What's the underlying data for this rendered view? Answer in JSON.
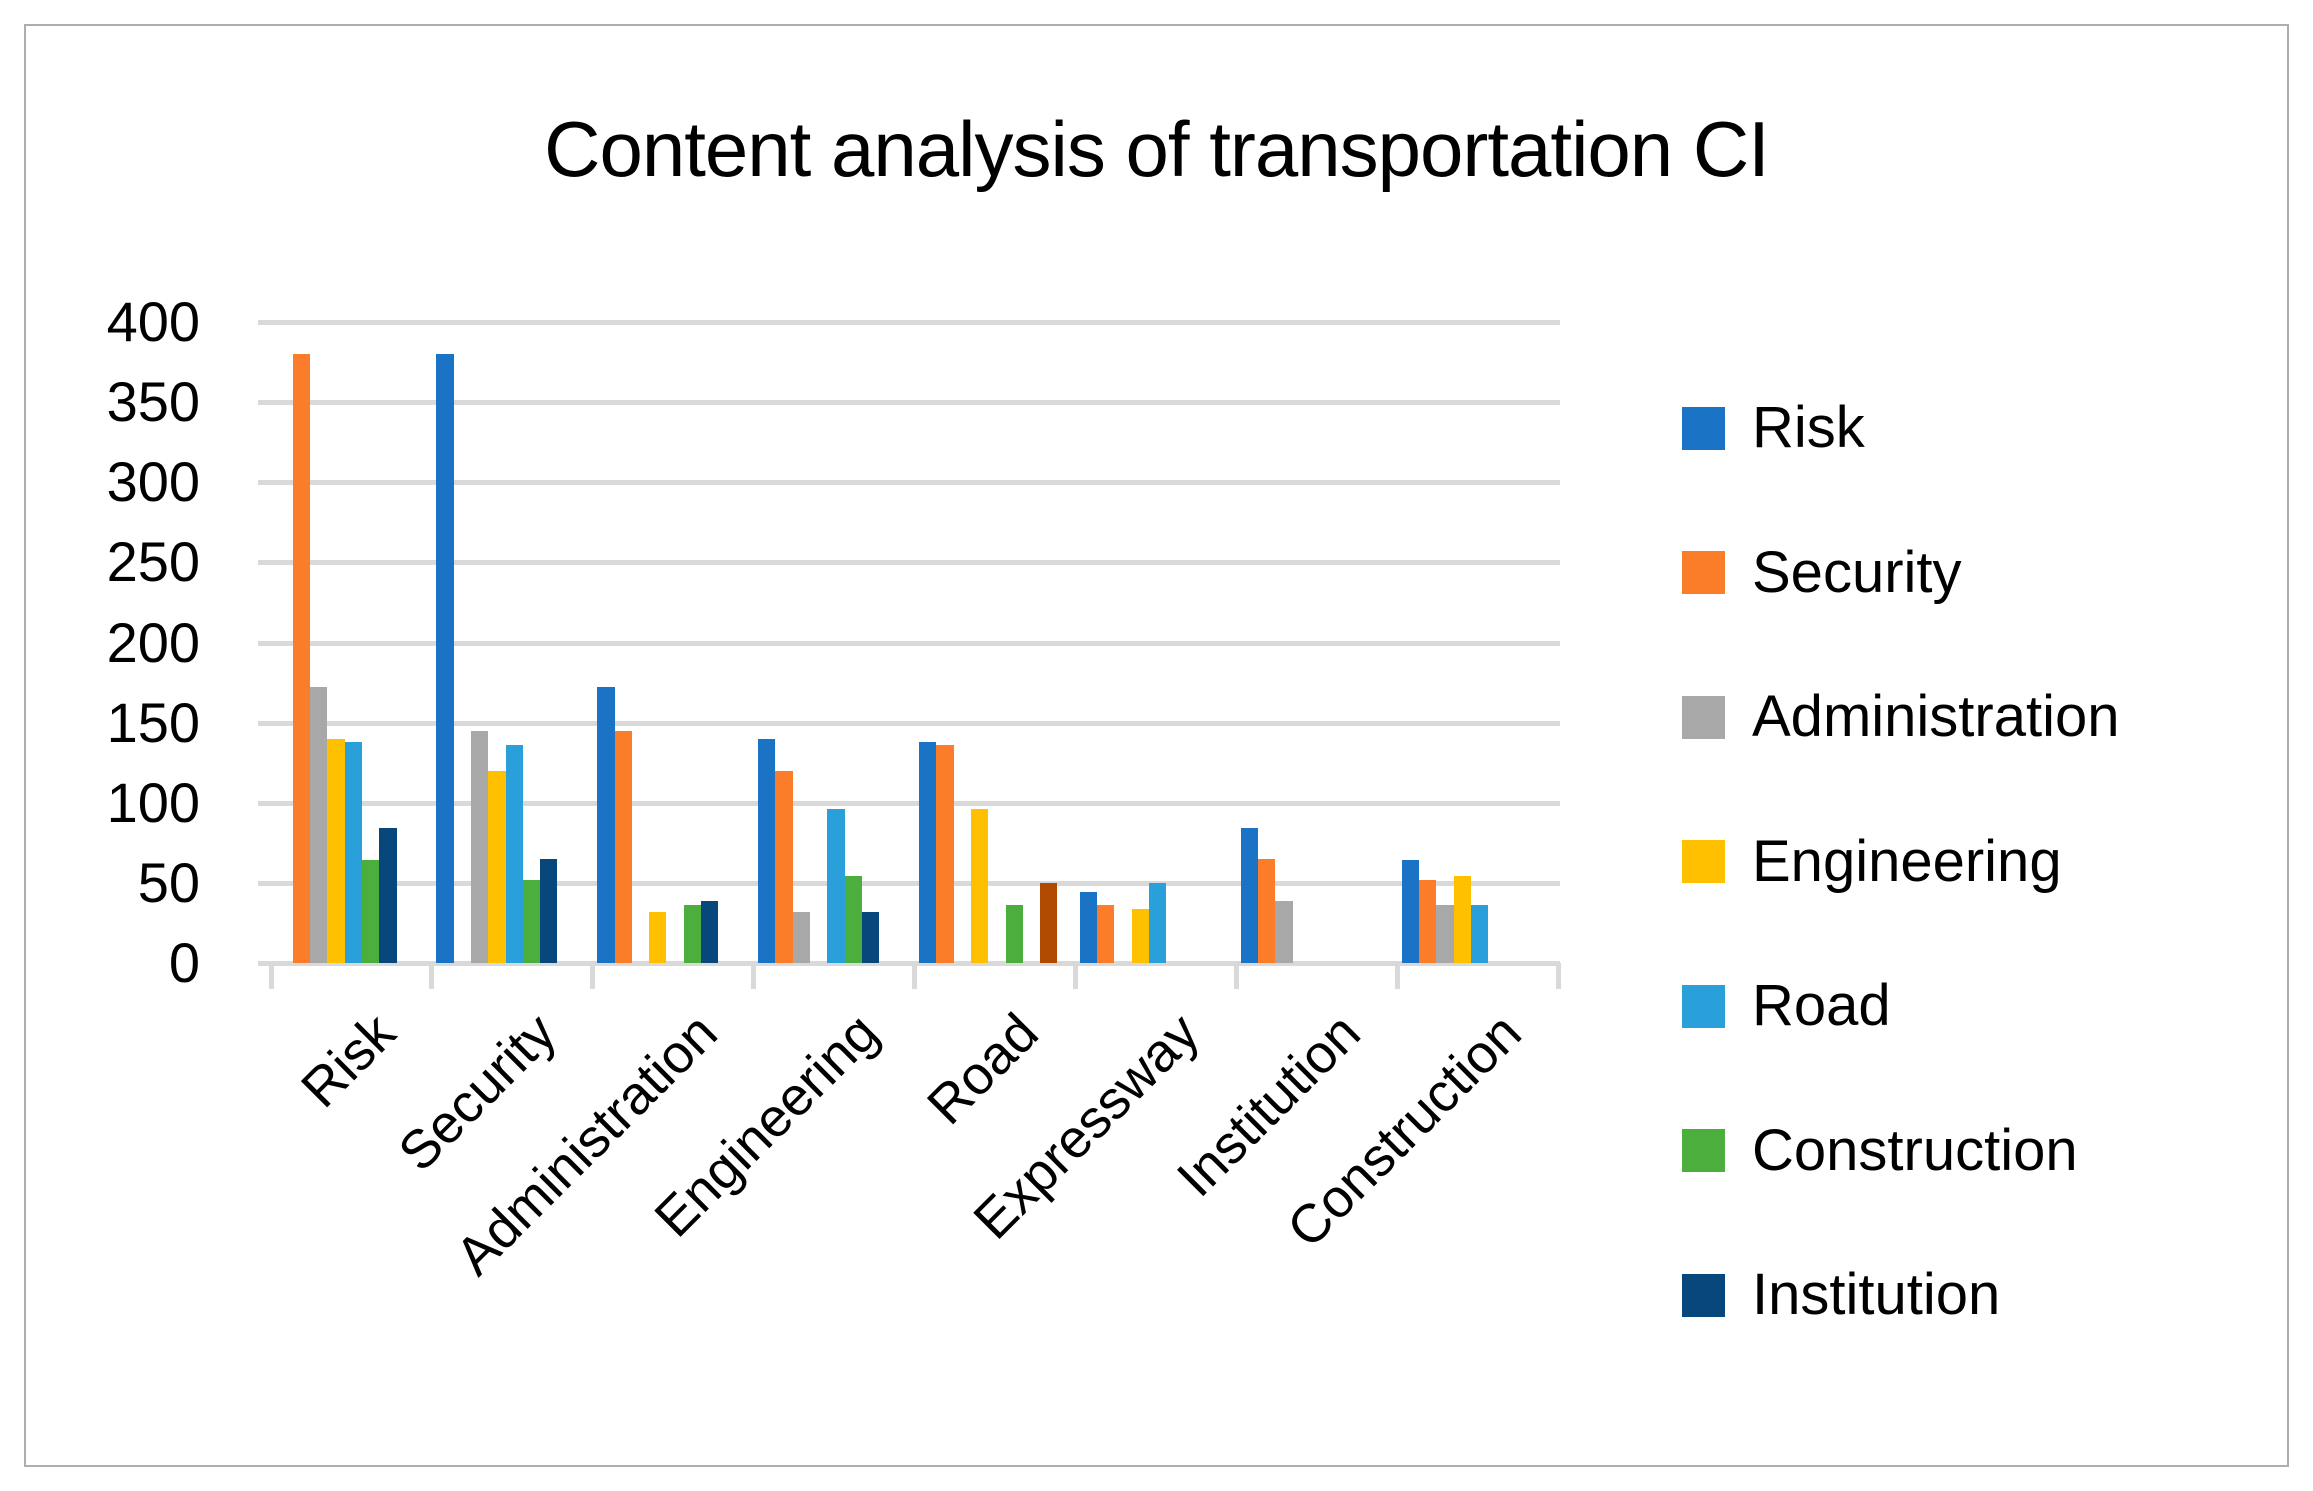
{
  "chart_data": {
    "type": "bar",
    "title": "Content analysis of transportation CI",
    "categories": [
      "Risk",
      "Security",
      "Administration",
      "Engineering",
      "Road",
      "Expressway",
      "Institution",
      "Construction"
    ],
    "series": [
      {
        "name": "Risk",
        "color": "#1B73C6",
        "in_legend": true,
        "values": [
          0,
          380,
          172,
          140,
          138,
          44,
          84,
          64
        ]
      },
      {
        "name": "Security",
        "color": "#FB7D29",
        "in_legend": true,
        "values": [
          380,
          0,
          145,
          120,
          136,
          36,
          65,
          52
        ]
      },
      {
        "name": "Administration",
        "color": "#A8A8A8",
        "in_legend": true,
        "values": [
          172,
          145,
          0,
          32,
          0,
          0,
          39,
          36
        ]
      },
      {
        "name": "Engineering",
        "color": "#FFC000",
        "in_legend": true,
        "values": [
          140,
          120,
          32,
          0,
          96,
          34,
          0,
          54
        ]
      },
      {
        "name": "Road",
        "color": "#29A0DA",
        "in_legend": true,
        "values": [
          138,
          136,
          0,
          96,
          0,
          50,
          0,
          36
        ]
      },
      {
        "name": "Construction",
        "color": "#4BAE3D",
        "in_legend": true,
        "values": [
          64,
          52,
          36,
          54,
          36,
          0,
          0,
          0
        ]
      },
      {
        "name": "Institution",
        "color": "#07477B",
        "in_legend": true,
        "values": [
          84,
          65,
          39,
          32,
          0,
          0,
          0,
          0
        ]
      },
      {
        "name": "",
        "color": "#B04A00",
        "in_legend": false,
        "values": [
          0,
          0,
          0,
          0,
          50,
          0,
          0,
          0
        ]
      }
    ],
    "xlabel": "",
    "ylabel": "",
    "ylim": [
      0,
      400
    ],
    "y_ticks": [
      400,
      350,
      300,
      250,
      200,
      150,
      100,
      50,
      0
    ],
    "grid": true,
    "gridline_color": "#D9D9D9",
    "legend_position": "right",
    "legend_items": [
      "Risk",
      "Security",
      "Administration",
      "Engineering",
      "Road",
      "Construction",
      "Institution"
    ]
  }
}
